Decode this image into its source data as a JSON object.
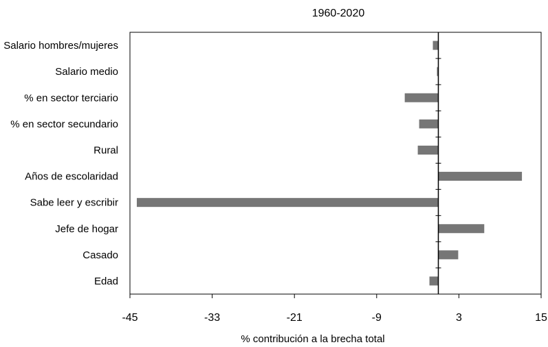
{
  "chart_data": {
    "type": "bar",
    "orientation": "horizontal",
    "title": "1960-2020",
    "xlabel": "% contribución a la brecha total",
    "ylabel": "",
    "xlim": [
      -45,
      15
    ],
    "xticks": [
      "-45",
      "-33",
      "-21",
      "-9",
      "3",
      "15"
    ],
    "grid": false,
    "bar_color": "#767676",
    "categories": [
      "Salario hombres/mujeres",
      "Salario medio",
      "% en sector terciario",
      "% en sector secundario",
      "Rural",
      "Años de escolaridad",
      "Sabe leer y escribir",
      "Jefe de hogar",
      "Casado",
      "Edad"
    ],
    "values": [
      -0.8,
      -0.2,
      -4.9,
      -2.8,
      -3.0,
      12.2,
      -44.0,
      6.7,
      2.9,
      -1.3
    ]
  }
}
